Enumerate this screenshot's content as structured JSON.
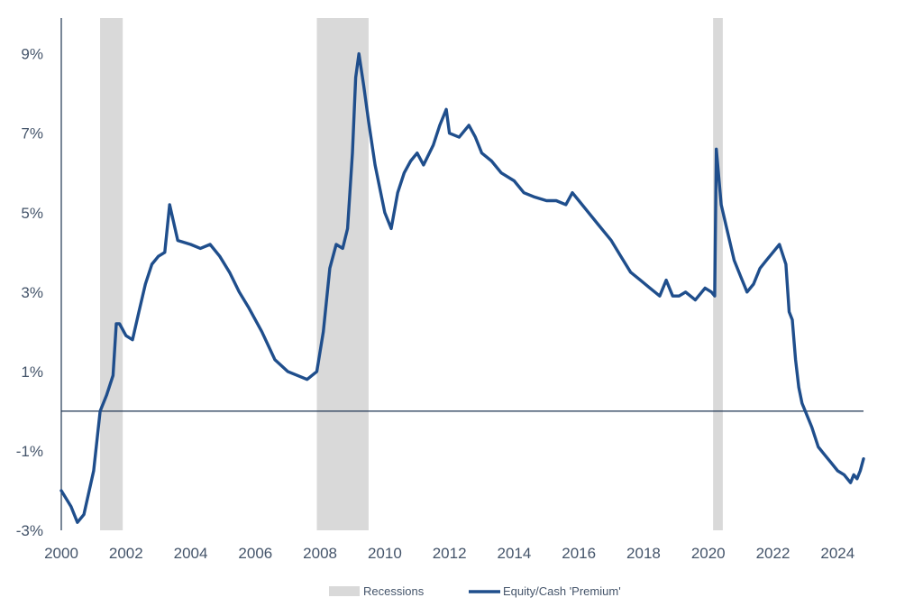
{
  "chart_data": {
    "type": "line",
    "title": "",
    "xlabel": "",
    "ylabel": "",
    "xlim": [
      2000,
      2024.8
    ],
    "ylim": [
      -3,
      9.9
    ],
    "x_ticks": [
      2000,
      2002,
      2004,
      2006,
      2008,
      2010,
      2012,
      2014,
      2016,
      2018,
      2020,
      2022,
      2024
    ],
    "x_tick_labels": [
      "2000",
      "2002",
      "2004",
      "2006",
      "2008",
      "2010",
      "2012",
      "2014",
      "2016",
      "2018",
      "2020",
      "2022",
      "2024"
    ],
    "y_ticks": [
      -3,
      -1,
      1,
      3,
      5,
      7,
      9
    ],
    "y_tick_labels": [
      "-3%",
      "-1%",
      "1%",
      "3%",
      "5%",
      "7%",
      "9%"
    ],
    "grid": false,
    "zero_line": true,
    "legend": {
      "placement": "bottom-center",
      "entries": [
        "Recessions",
        "Equity/Cash 'Premium'"
      ]
    },
    "recessions": {
      "name": "Recessions",
      "color": "#d9d9d9",
      "periods": [
        [
          2001.2,
          2001.9
        ],
        [
          2007.9,
          2009.5
        ],
        [
          2020.15,
          2020.45
        ]
      ]
    },
    "series": [
      {
        "name": "Equity/Cash 'Premium'",
        "color": "#1f4e8c",
        "x": [
          2000.0,
          2000.3,
          2000.5,
          2000.7,
          2001.0,
          2001.2,
          2001.4,
          2001.6,
          2001.7,
          2001.8,
          2002.0,
          2002.2,
          2002.4,
          2002.6,
          2002.8,
          2003.0,
          2003.2,
          2003.35,
          2003.6,
          2004.0,
          2004.3,
          2004.6,
          2004.9,
          2005.2,
          2005.5,
          2005.8,
          2006.2,
          2006.6,
          2007.0,
          2007.3,
          2007.6,
          2007.9,
          2008.1,
          2008.3,
          2008.5,
          2008.7,
          2008.85,
          2009.0,
          2009.1,
          2009.2,
          2009.35,
          2009.5,
          2009.7,
          2010.0,
          2010.2,
          2010.4,
          2010.6,
          2010.8,
          2011.0,
          2011.2,
          2011.5,
          2011.7,
          2011.9,
          2012.0,
          2012.3,
          2012.6,
          2012.8,
          2013.0,
          2013.3,
          2013.6,
          2014.0,
          2014.3,
          2014.6,
          2015.0,
          2015.3,
          2015.6,
          2015.8,
          2016.0,
          2016.3,
          2016.6,
          2017.0,
          2017.3,
          2017.6,
          2017.9,
          2018.2,
          2018.5,
          2018.7,
          2018.9,
          2019.1,
          2019.3,
          2019.6,
          2019.9,
          2020.1,
          2020.2,
          2020.25,
          2020.4,
          2020.6,
          2020.8,
          2021.0,
          2021.2,
          2021.4,
          2021.6,
          2021.8,
          2022.0,
          2022.2,
          2022.4,
          2022.5,
          2022.6,
          2022.7,
          2022.8,
          2022.9,
          2023.0,
          2023.2,
          2023.4,
          2023.6,
          2023.8,
          2024.0,
          2024.2,
          2024.4,
          2024.5,
          2024.6,
          2024.7,
          2024.8
        ],
        "values": [
          -2.0,
          -2.4,
          -2.8,
          -2.6,
          -1.5,
          0.0,
          0.4,
          0.9,
          2.2,
          2.2,
          1.9,
          1.8,
          2.5,
          3.2,
          3.7,
          3.9,
          4.0,
          5.2,
          4.3,
          4.2,
          4.1,
          4.2,
          3.9,
          3.5,
          3.0,
          2.6,
          2.0,
          1.3,
          1.0,
          0.9,
          0.8,
          1.0,
          2.0,
          3.6,
          4.2,
          4.1,
          4.6,
          6.5,
          8.4,
          9.0,
          8.2,
          7.3,
          6.2,
          5.0,
          4.6,
          5.5,
          6.0,
          6.3,
          6.5,
          6.2,
          6.7,
          7.2,
          7.6,
          7.0,
          6.9,
          7.2,
          6.9,
          6.5,
          6.3,
          6.0,
          5.8,
          5.5,
          5.4,
          5.3,
          5.3,
          5.2,
          5.5,
          5.3,
          5.0,
          4.7,
          4.3,
          3.9,
          3.5,
          3.3,
          3.1,
          2.9,
          3.3,
          2.9,
          2.9,
          3.0,
          2.8,
          3.1,
          3.0,
          2.9,
          6.6,
          5.2,
          4.5,
          3.8,
          3.4,
          3.0,
          3.2,
          3.6,
          3.8,
          4.0,
          4.2,
          3.7,
          2.5,
          2.3,
          1.3,
          0.6,
          0.2,
          0.0,
          -0.4,
          -0.9,
          -1.1,
          -1.3,
          -1.5,
          -1.6,
          -1.8,
          -1.6,
          -1.7,
          -1.5,
          -1.2
        ]
      }
    ]
  }
}
